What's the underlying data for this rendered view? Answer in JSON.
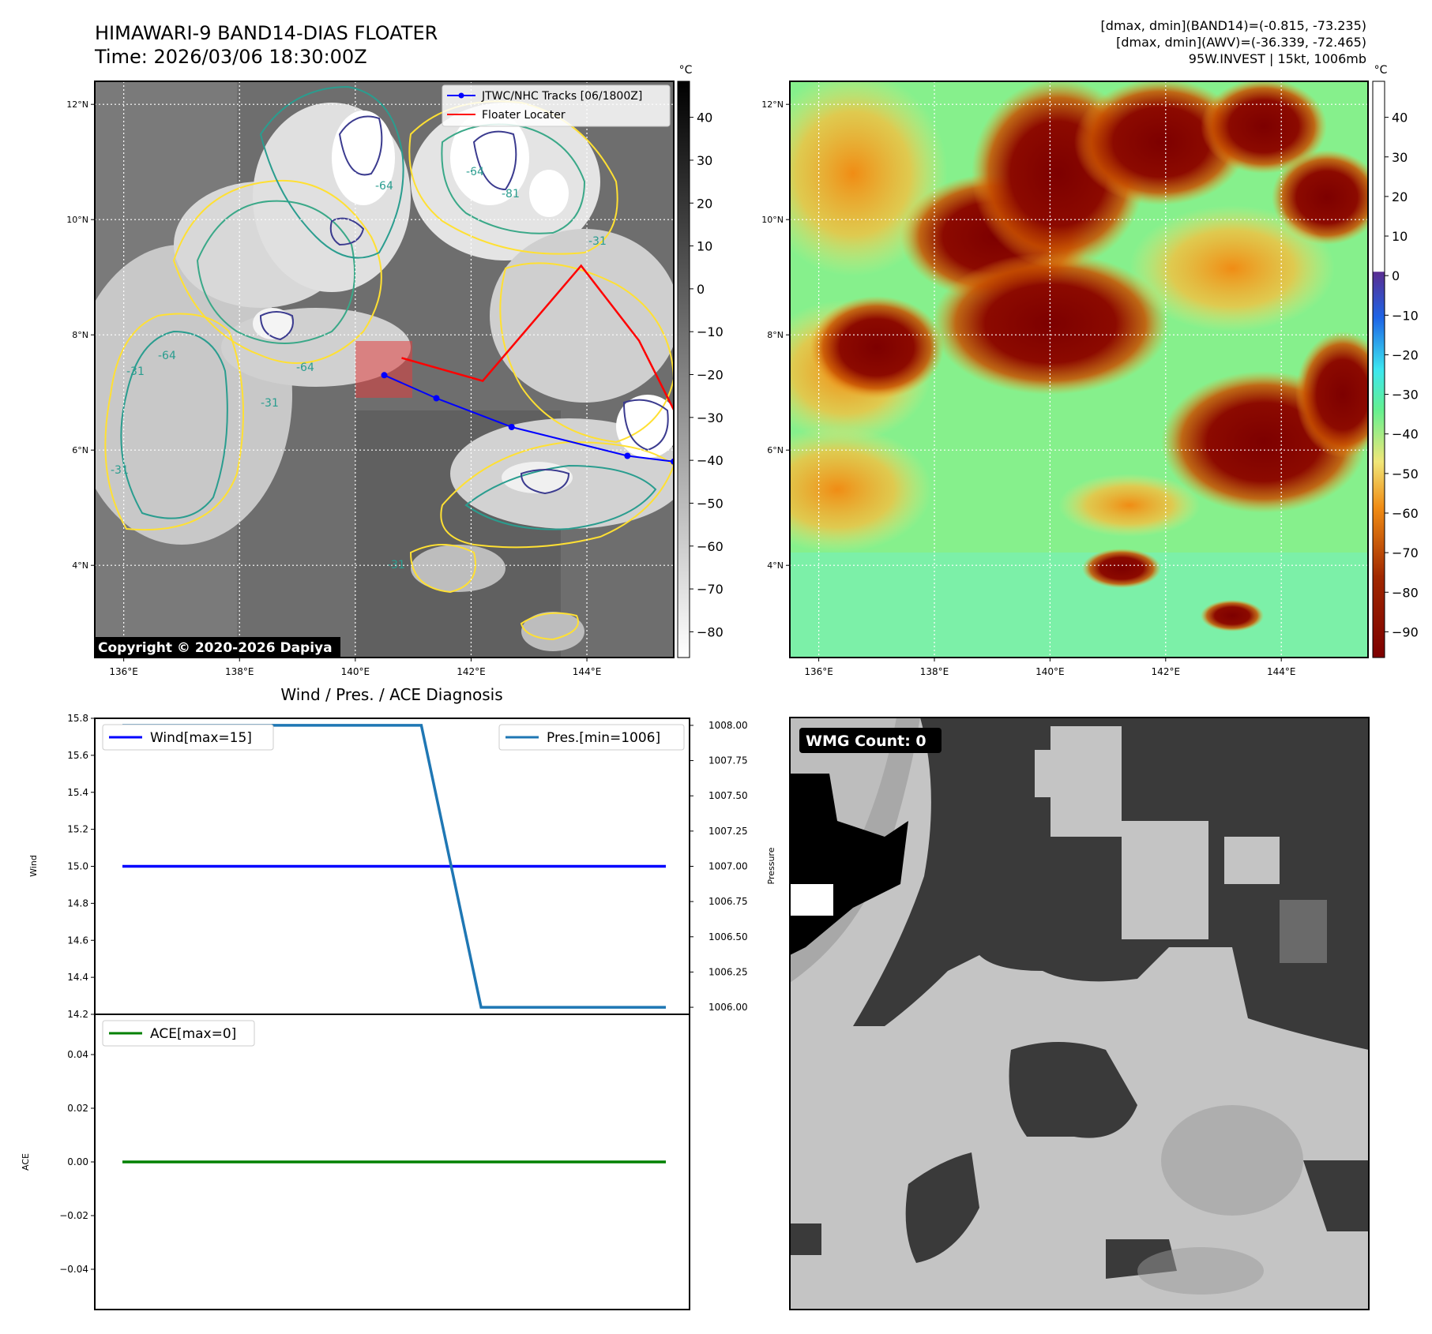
{
  "header": {
    "title": "HIMAWARI-9 BAND14-DIAS FLOATER",
    "time": "Time: 2026/03/06 18:30:00Z",
    "stats_band14": "[dmax, dmin](BAND14)=(-0.815, -73.235)",
    "stats_awv": "[dmax, dmin](AWV)=(-36.339, -72.465)",
    "storm_info": "95W.INVEST | 15kt, 1006mb"
  },
  "chart_data": [
    {
      "type": "heatmap",
      "panel": "band14-ir-map",
      "lon_ticks": [
        "136°E",
        "138°E",
        "140°E",
        "142°E",
        "144°E"
      ],
      "lat_ticks": [
        "12°N",
        "10°N",
        "8°N",
        "6°N",
        "4°N"
      ],
      "lon_range": [
        135.5,
        145.5
      ],
      "lat_range": [
        2.4,
        12.4
      ],
      "grid": true,
      "colorbar": {
        "unit": "°C",
        "ticks": [
          "40",
          "30",
          "20",
          "10",
          "0",
          "−10",
          "−20",
          "−30",
          "−40",
          "−50",
          "−60",
          "−70",
          "−80"
        ],
        "colormap": "greys_reversed"
      },
      "contour_labels": [
        "-64",
        "-31",
        "-31",
        "-64",
        "-31",
        "-81",
        "-64",
        "-31",
        "-64",
        "-31"
      ],
      "legend": {
        "position": "top-right",
        "entries": [
          {
            "label": "JTWC/NHC Tracks [06/1800Z]",
            "color": "#0000ff"
          },
          {
            "label": "Floater Locater",
            "color": "#ff0000"
          }
        ]
      },
      "track": [
        {
          "lon": 140.5,
          "lat": 7.3
        },
        {
          "lon": 141.4,
          "lat": 6.9
        },
        {
          "lon": 142.7,
          "lat": 6.4
        },
        {
          "lon": 144.7,
          "lat": 5.9
        },
        {
          "lon": 145.5,
          "lat": 5.8
        }
      ],
      "floater_locater": [
        {
          "lon": 140.8,
          "lat": 7.6
        },
        {
          "lon": 142.2,
          "lat": 7.2
        },
        {
          "lon": 143.9,
          "lat": 9.2
        },
        {
          "lon": 144.9,
          "lat": 7.9
        },
        {
          "lon": 145.5,
          "lat": 6.7
        }
      ],
      "copyright": "Copyright © 2020-2026 Dapiya"
    },
    {
      "type": "heatmap",
      "panel": "awv-map",
      "lon_ticks": [
        "136°E",
        "138°E",
        "140°E",
        "142°E",
        "144°E"
      ],
      "lat_ticks": [
        "12°N",
        "10°N",
        "8°N",
        "6°N",
        "4°N"
      ],
      "lon_range": [
        135.5,
        145.5
      ],
      "lat_range": [
        2.4,
        12.4
      ],
      "grid": true,
      "colorbar": {
        "unit": "°C",
        "ticks": [
          "40",
          "30",
          "20",
          "10",
          "0",
          "−10",
          "−20",
          "−30",
          "−40",
          "−50",
          "−60",
          "−70",
          "−80",
          "−90"
        ],
        "colors": {
          "warm_top": "#ffffff",
          "zero": "#5a2d91",
          "minus10": "#1e64e6",
          "minus25": "#3ce6f0",
          "minus35": "#64f090",
          "minus45": "#f0e678",
          "minus55": "#f08c14",
          "minus70": "#a02800",
          "minus85": "#7d0000"
        }
      }
    },
    {
      "type": "line",
      "panel": "wind-pressure",
      "title": "Wind / Pres. / ACE Diagnosis",
      "x_range": [
        0,
        1
      ],
      "series": [
        {
          "name": "Wind[max=15]",
          "axis": "left",
          "color": "#0000ff",
          "x": [
            0,
            1
          ],
          "values": [
            15.0,
            15.0
          ]
        },
        {
          "name": "Pres.[min=1006]",
          "axis": "right",
          "color": "#1f77b4",
          "x": [
            0,
            0.55,
            0.66,
            1
          ],
          "values": [
            1008.0,
            1008.0,
            1006.0,
            1006.0
          ]
        }
      ],
      "ylabel_left": "Wind",
      "ylim_left": [
        14.2,
        15.8
      ],
      "yticks_left": [
        "15.8",
        "15.6",
        "15.4",
        "15.2",
        "15.0",
        "14.8",
        "14.6",
        "14.4",
        "14.2"
      ],
      "ylabel_right": "Pressure",
      "ylim_right": [
        1005.95,
        1008.05
      ],
      "yticks_right": [
        "1008.00",
        "1007.75",
        "1007.50",
        "1007.25",
        "1007.00",
        "1006.75",
        "1006.50",
        "1006.25",
        "1006.00"
      ]
    },
    {
      "type": "line",
      "panel": "ace",
      "series": [
        {
          "name": "ACE[max=0]",
          "color": "#008000",
          "x": [
            0,
            1
          ],
          "values": [
            0,
            0
          ]
        }
      ],
      "ylabel": "ACE",
      "ylim": [
        -0.055,
        0.055
      ],
      "yticks": [
        "0.04",
        "0.02",
        "0.00",
        "−0.02",
        "−0.04"
      ]
    },
    {
      "type": "heatmap",
      "panel": "wmg-map",
      "badge": "WMG Count: 0"
    }
  ]
}
